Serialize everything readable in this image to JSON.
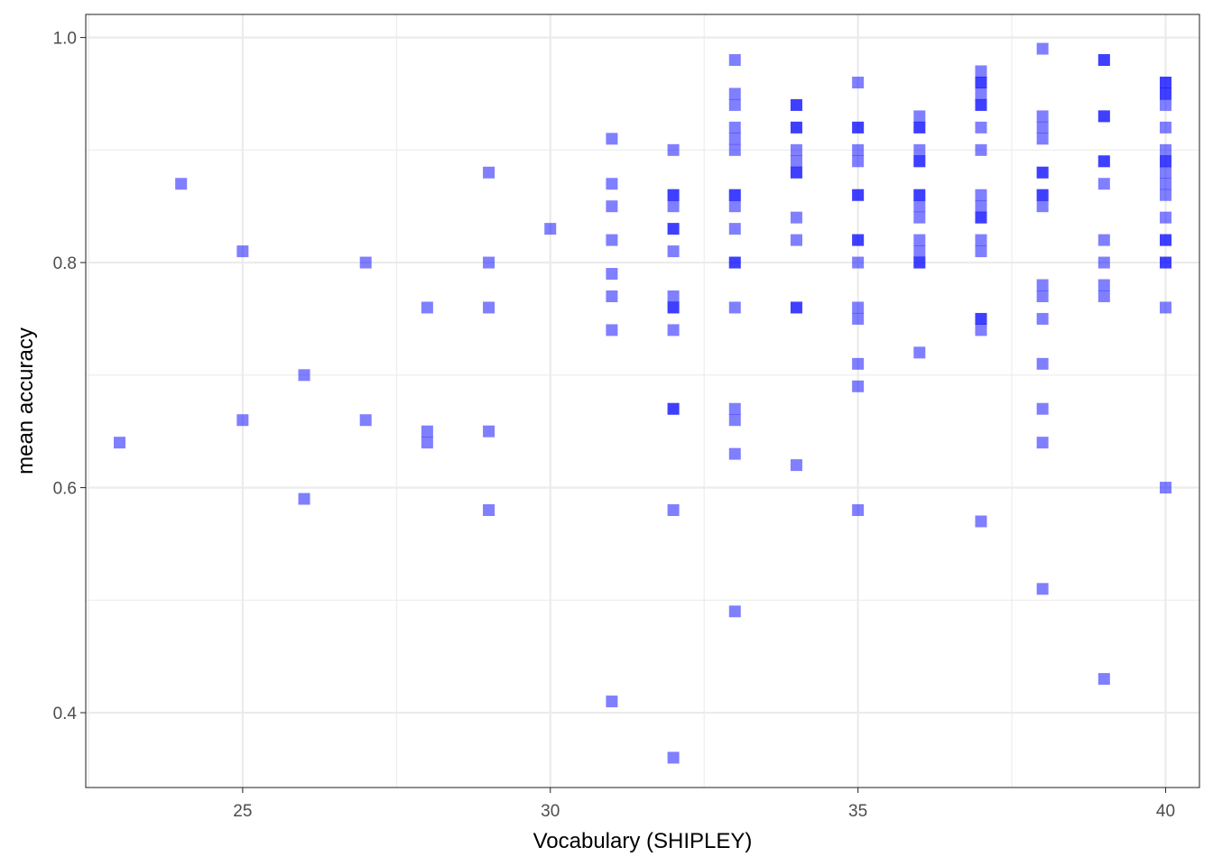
{
  "chart_data": {
    "type": "scatter",
    "title": "",
    "xlabel": "Vocabulary (SHIPLEY)",
    "ylabel": "mean accuracy",
    "xlim": [
      22.45,
      40.55
    ],
    "ylim": [
      0.3335,
      1.0205
    ],
    "x_ticks": [
      25,
      30,
      35,
      40
    ],
    "x_tick_labels": [
      "25",
      "30",
      "35",
      "40"
    ],
    "x_minor_ticks": [
      22.5,
      27.5,
      32.5,
      37.5
    ],
    "y_ticks": [
      0.4,
      0.6,
      0.8,
      1.0
    ],
    "y_tick_labels": [
      "0.4",
      "0.6",
      "0.8",
      "1.0"
    ],
    "y_minor_ticks": [
      0.5,
      0.7,
      0.9
    ],
    "grid": true,
    "legend": "none",
    "marker": "square",
    "colors": {
      "point": "#0000ff",
      "point_opacity": 0.5,
      "grid": "#ebebeb",
      "panel_border": "#333333",
      "tick_text": "#4d4d4d",
      "axis_title": "#000000"
    },
    "points": [
      {
        "x": 23,
        "y": 0.64
      },
      {
        "x": 24,
        "y": 0.87
      },
      {
        "x": 25,
        "y": 0.81
      },
      {
        "x": 25,
        "y": 0.66
      },
      {
        "x": 26,
        "y": 0.7
      },
      {
        "x": 26,
        "y": 0.59
      },
      {
        "x": 27,
        "y": 0.8
      },
      {
        "x": 27,
        "y": 0.66
      },
      {
        "x": 28,
        "y": 0.76
      },
      {
        "x": 28,
        "y": 0.65
      },
      {
        "x": 28,
        "y": 0.64
      },
      {
        "x": 29,
        "y": 0.88
      },
      {
        "x": 29,
        "y": 0.8
      },
      {
        "x": 29,
        "y": 0.76
      },
      {
        "x": 29,
        "y": 0.65
      },
      {
        "x": 29,
        "y": 0.58
      },
      {
        "x": 30,
        "y": 0.83
      },
      {
        "x": 31,
        "y": 0.91
      },
      {
        "x": 31,
        "y": 0.87
      },
      {
        "x": 31,
        "y": 0.85
      },
      {
        "x": 31,
        "y": 0.82
      },
      {
        "x": 31,
        "y": 0.79
      },
      {
        "x": 31,
        "y": 0.77
      },
      {
        "x": 31,
        "y": 0.74
      },
      {
        "x": 31,
        "y": 0.41
      },
      {
        "x": 32,
        "y": 0.9
      },
      {
        "x": 32,
        "y": 0.86
      },
      {
        "x": 32,
        "y": 0.86
      },
      {
        "x": 32,
        "y": 0.85
      },
      {
        "x": 32,
        "y": 0.83
      },
      {
        "x": 32,
        "y": 0.83
      },
      {
        "x": 32,
        "y": 0.81
      },
      {
        "x": 32,
        "y": 0.77
      },
      {
        "x": 32,
        "y": 0.76
      },
      {
        "x": 32,
        "y": 0.76
      },
      {
        "x": 32,
        "y": 0.74
      },
      {
        "x": 32,
        "y": 0.67
      },
      {
        "x": 32,
        "y": 0.67
      },
      {
        "x": 32,
        "y": 0.58
      },
      {
        "x": 32,
        "y": 0.36
      },
      {
        "x": 33,
        "y": 0.98
      },
      {
        "x": 33,
        "y": 0.95
      },
      {
        "x": 33,
        "y": 0.94
      },
      {
        "x": 33,
        "y": 0.92
      },
      {
        "x": 33,
        "y": 0.91
      },
      {
        "x": 33,
        "y": 0.9
      },
      {
        "x": 33,
        "y": 0.86
      },
      {
        "x": 33,
        "y": 0.86
      },
      {
        "x": 33,
        "y": 0.85
      },
      {
        "x": 33,
        "y": 0.83
      },
      {
        "x": 33,
        "y": 0.8
      },
      {
        "x": 33,
        "y": 0.8
      },
      {
        "x": 33,
        "y": 0.76
      },
      {
        "x": 33,
        "y": 0.67
      },
      {
        "x": 33,
        "y": 0.66
      },
      {
        "x": 33,
        "y": 0.63
      },
      {
        "x": 33,
        "y": 0.49
      },
      {
        "x": 34,
        "y": 0.94
      },
      {
        "x": 34,
        "y": 0.94
      },
      {
        "x": 34,
        "y": 0.92
      },
      {
        "x": 34,
        "y": 0.92
      },
      {
        "x": 34,
        "y": 0.9
      },
      {
        "x": 34,
        "y": 0.89
      },
      {
        "x": 34,
        "y": 0.88
      },
      {
        "x": 34,
        "y": 0.88
      },
      {
        "x": 34,
        "y": 0.84
      },
      {
        "x": 34,
        "y": 0.82
      },
      {
        "x": 34,
        "y": 0.76
      },
      {
        "x": 34,
        "y": 0.76
      },
      {
        "x": 34,
        "y": 0.62
      },
      {
        "x": 35,
        "y": 0.96
      },
      {
        "x": 35,
        "y": 0.92
      },
      {
        "x": 35,
        "y": 0.92
      },
      {
        "x": 35,
        "y": 0.9
      },
      {
        "x": 35,
        "y": 0.89
      },
      {
        "x": 35,
        "y": 0.86
      },
      {
        "x": 35,
        "y": 0.86
      },
      {
        "x": 35,
        "y": 0.82
      },
      {
        "x": 35,
        "y": 0.82
      },
      {
        "x": 35,
        "y": 0.8
      },
      {
        "x": 35,
        "y": 0.76
      },
      {
        "x": 35,
        "y": 0.75
      },
      {
        "x": 35,
        "y": 0.71
      },
      {
        "x": 35,
        "y": 0.69
      },
      {
        "x": 35,
        "y": 0.58
      },
      {
        "x": 36,
        "y": 0.93
      },
      {
        "x": 36,
        "y": 0.92
      },
      {
        "x": 36,
        "y": 0.92
      },
      {
        "x": 36,
        "y": 0.9
      },
      {
        "x": 36,
        "y": 0.89
      },
      {
        "x": 36,
        "y": 0.89
      },
      {
        "x": 36,
        "y": 0.86
      },
      {
        "x": 36,
        "y": 0.86
      },
      {
        "x": 36,
        "y": 0.85
      },
      {
        "x": 36,
        "y": 0.84
      },
      {
        "x": 36,
        "y": 0.82
      },
      {
        "x": 36,
        "y": 0.81
      },
      {
        "x": 36,
        "y": 0.8
      },
      {
        "x": 36,
        "y": 0.8
      },
      {
        "x": 36,
        "y": 0.72
      },
      {
        "x": 37,
        "y": 0.97
      },
      {
        "x": 37,
        "y": 0.96
      },
      {
        "x": 37,
        "y": 0.96
      },
      {
        "x": 37,
        "y": 0.95
      },
      {
        "x": 37,
        "y": 0.94
      },
      {
        "x": 37,
        "y": 0.94
      },
      {
        "x": 37,
        "y": 0.92
      },
      {
        "x": 37,
        "y": 0.9
      },
      {
        "x": 37,
        "y": 0.86
      },
      {
        "x": 37,
        "y": 0.85
      },
      {
        "x": 37,
        "y": 0.84
      },
      {
        "x": 37,
        "y": 0.84
      },
      {
        "x": 37,
        "y": 0.82
      },
      {
        "x": 37,
        "y": 0.81
      },
      {
        "x": 37,
        "y": 0.75
      },
      {
        "x": 37,
        "y": 0.75
      },
      {
        "x": 37,
        "y": 0.74
      },
      {
        "x": 37,
        "y": 0.57
      },
      {
        "x": 38,
        "y": 0.99
      },
      {
        "x": 38,
        "y": 0.93
      },
      {
        "x": 38,
        "y": 0.92
      },
      {
        "x": 38,
        "y": 0.91
      },
      {
        "x": 38,
        "y": 0.88
      },
      {
        "x": 38,
        "y": 0.88
      },
      {
        "x": 38,
        "y": 0.86
      },
      {
        "x": 38,
        "y": 0.86
      },
      {
        "x": 38,
        "y": 0.85
      },
      {
        "x": 38,
        "y": 0.78
      },
      {
        "x": 38,
        "y": 0.77
      },
      {
        "x": 38,
        "y": 0.75
      },
      {
        "x": 38,
        "y": 0.71
      },
      {
        "x": 38,
        "y": 0.67
      },
      {
        "x": 38,
        "y": 0.64
      },
      {
        "x": 38,
        "y": 0.51
      },
      {
        "x": 39,
        "y": 0.98
      },
      {
        "x": 39,
        "y": 0.98
      },
      {
        "x": 39,
        "y": 0.93
      },
      {
        "x": 39,
        "y": 0.93
      },
      {
        "x": 39,
        "y": 0.89
      },
      {
        "x": 39,
        "y": 0.89
      },
      {
        "x": 39,
        "y": 0.87
      },
      {
        "x": 39,
        "y": 0.82
      },
      {
        "x": 39,
        "y": 0.8
      },
      {
        "x": 39,
        "y": 0.78
      },
      {
        "x": 39,
        "y": 0.77
      },
      {
        "x": 39,
        "y": 0.43
      },
      {
        "x": 40,
        "y": 0.96
      },
      {
        "x": 40,
        "y": 0.96
      },
      {
        "x": 40,
        "y": 0.95
      },
      {
        "x": 40,
        "y": 0.95
      },
      {
        "x": 40,
        "y": 0.94
      },
      {
        "x": 40,
        "y": 0.92
      },
      {
        "x": 40,
        "y": 0.9
      },
      {
        "x": 40,
        "y": 0.89
      },
      {
        "x": 40,
        "y": 0.89
      },
      {
        "x": 40,
        "y": 0.88
      },
      {
        "x": 40,
        "y": 0.87
      },
      {
        "x": 40,
        "y": 0.86
      },
      {
        "x": 40,
        "y": 0.84
      },
      {
        "x": 40,
        "y": 0.82
      },
      {
        "x": 40,
        "y": 0.82
      },
      {
        "x": 40,
        "y": 0.8
      },
      {
        "x": 40,
        "y": 0.8
      },
      {
        "x": 40,
        "y": 0.76
      },
      {
        "x": 40,
        "y": 0.6
      }
    ]
  }
}
